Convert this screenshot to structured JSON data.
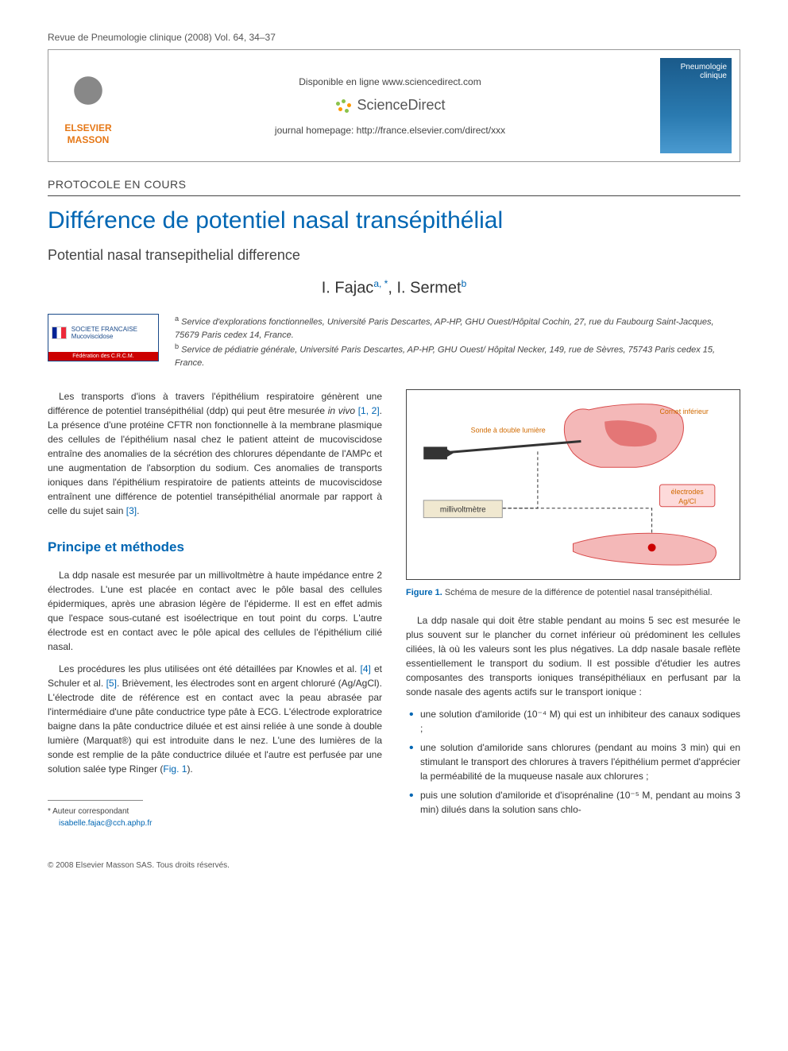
{
  "journal_ref": "Revue de Pneumologie clinique (2008) Vol. 64, 34–37",
  "header": {
    "online_text": "Disponible en ligne www.sciencedirect.com",
    "sd_brand": "ScienceDirect",
    "homepage_text": "journal homepage: http://france.elsevier.com/direct/xxx",
    "publisher_line1": "ELSEVIER",
    "publisher_line2": "MASSON",
    "cover_text": "Pneumologie clinique"
  },
  "section_label": "PROTOCOLE EN COURS",
  "title_fr": "Différence de potentiel nasal transépithélial",
  "title_en": "Potential nasal transepithelial difference",
  "authors_html": "I. Fajac<sup data-name=\"affil-sup\">a, *</sup>, I. Sermet<sup data-name=\"affil-sup\">b</sup>",
  "society": {
    "name_lines": "SOCIETE FRANCAISE Mucoviscidose",
    "federation": "Fédération des C.R.C.M."
  },
  "affiliations": {
    "a": "a Service d'explorations fonctionnelles, Université Paris Descartes, AP-HP, GHU Ouest/Hôpital Cochin, 27, rue du Faubourg Saint-Jacques, 75679 Paris cedex 14, France.",
    "b": "b Service de pédiatrie générale, Université Paris Descartes, AP-HP, GHU Ouest/ Hôpital Necker, 149, rue de Sèvres, 75743 Paris cedex 15, France."
  },
  "body": {
    "intro": "Les transports d'ions à travers l'épithélium respiratoire génèrent une différence de potentiel transépithélial (ddp) qui peut être mesurée in vivo [1, 2]. La présence d'une protéine CFTR non fonctionnelle à la membrane plasmique des cellules de l'épithélium nasal chez le patient atteint de mucoviscidose entraîne des anomalies de la sécrétion des chlorures dépendante de l'AMPc et une augmentation de l'absorption du sodium. Ces anomalies de transports ioniques dans l'épithélium respiratoire de patients atteints de mucoviscidose entraînent une différence de potentiel transépithélial anormale par rapport à celle du sujet sain [3].",
    "section1_heading": "Principe et méthodes",
    "p1": "La ddp nasale est mesurée par un millivoltmètre à haute impédance entre 2 électrodes. L'une est placée en contact avec le pôle basal des cellules épidermiques, après une abrasion légère de l'épiderme. Il est en effet admis que l'espace sous-cutané est isoélectrique en tout point du corps. L'autre électrode est en contact avec le pôle apical des cellules de l'épithélium cilié nasal.",
    "p2": "Les procédures les plus utilisées ont été détaillées par Knowles et al. [4] et Schuler et al. [5]. Brièvement, les électrodes sont en argent chloruré (Ag/AgCl). L'électrode dite de référence est en contact avec la peau abrasée par l'intermédiaire d'une pâte conductrice type pâte à ECG. L'électrode exploratrice baigne dans la pâte conductrice diluée et est ainsi reliée à une sonde à double lumière (Marquat®) qui est introduite dans le nez. L'une des lumières de la sonde est remplie de la pâte conductrice diluée et l'autre est perfusée par une solution salée type Ringer (Fig. 1).",
    "col2_intro": "La ddp nasale qui doit être stable pendant au moins 5 sec est mesurée le plus souvent sur le plancher du cornet inférieur où prédominent les cellules ciliées, là où les valeurs sont les plus négatives. La ddp nasale basale reflète essentiellement le transport du sodium. Il est possible d'étudier les autres composantes des transports ioniques transépithéliaux en perfusant par la sonde nasale des agents actifs sur le transport ionique :",
    "bullets": [
      "une solution d'amiloride (10⁻⁴ M) qui est un inhibiteur des canaux sodiques ;",
      "une solution d'amiloride sans chlorures (pendant au moins 3 min) qui en stimulant le transport des chlorures à travers l'épithélium permet d'apprécier la perméabilité de la muqueuse nasale aux chlorures ;",
      "puis une solution d'amiloride et d'isoprénaline (10⁻⁵ M, pendant au moins 3 min) dilués dans la solution sans chlo-"
    ]
  },
  "figure1": {
    "number": "Figure 1.",
    "caption": "Schéma de mesure de la différence de potentiel nasal transépithélial.",
    "labels": {
      "cornet": "Cornet inférieur",
      "sonde": "Sonde à double lumière",
      "electrodes": "électrodes Ag/Cl",
      "millivolt": "millivoltmètre"
    },
    "colors": {
      "tissue_pink": "#f4b8b8",
      "tissue_red": "#d84a4a",
      "line": "#333333",
      "label_color": "#d06a00",
      "box_fill": "#f0e8d0",
      "box_border": "#999"
    }
  },
  "footnote": {
    "label": "* Auteur correspondant",
    "email": "isabelle.fajac@cch.aphp.fr"
  },
  "copyright": "© 2008 Elsevier Masson SAS. Tous droits réservés.",
  "refs": [
    "1",
    "2",
    "3",
    "4",
    "5"
  ]
}
